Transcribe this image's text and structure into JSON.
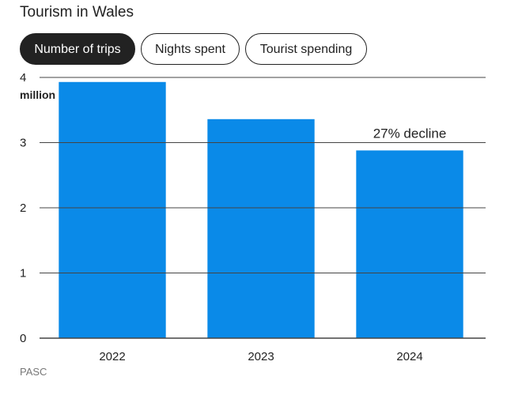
{
  "title": "Tourism in Wales",
  "tabs": [
    {
      "label": "Number of trips",
      "active": true
    },
    {
      "label": "Nights spent",
      "active": false
    },
    {
      "label": "Tourist spending",
      "active": false
    }
  ],
  "source": "PASC",
  "colors": {
    "bar": "#0a8ae8",
    "grid": "#444444",
    "active_tab": "#222222"
  },
  "chart_data": {
    "type": "bar",
    "categories": [
      "2022",
      "2023",
      "2024"
    ],
    "values": [
      3.93,
      3.36,
      2.88
    ],
    "yticks": [
      0,
      1,
      2,
      3,
      4
    ],
    "yunit": "million",
    "ylim": [
      0,
      4
    ],
    "annotation": {
      "text": "27% decline",
      "category": "2024"
    },
    "grid": true
  }
}
